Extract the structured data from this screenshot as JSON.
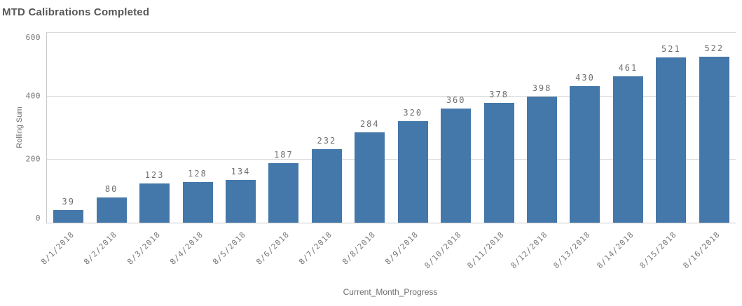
{
  "title": "MTD Calibrations Completed",
  "colors": {
    "bar": "#4477aa",
    "gridline": "#d9d9d9",
    "axis_line": "#c9c9c9",
    "tick_label": "#757575",
    "value_label": "#6e6e6e",
    "title_text": "#575757"
  },
  "chart_data": {
    "type": "bar",
    "title": "MTD Calibrations Completed",
    "xlabel": "Current_Month_Progress",
    "ylabel": "Rolling Sum",
    "categories": [
      "8/1/2018",
      "8/2/2018",
      "8/3/2018",
      "8/4/2018",
      "8/5/2018",
      "8/6/2018",
      "8/7/2018",
      "8/8/2018",
      "8/9/2018",
      "8/10/2018",
      "8/11/2018",
      "8/12/2018",
      "8/13/2018",
      "8/14/2018",
      "8/15/2018",
      "8/16/2018"
    ],
    "values": [
      39,
      80,
      123,
      128,
      134,
      187,
      232,
      284,
      320,
      360,
      378,
      398,
      430,
      461,
      521,
      522
    ],
    "ylim": [
      0,
      600
    ],
    "yticks": [
      0,
      200,
      400,
      600
    ],
    "grid": true,
    "legend": false,
    "value_labels_shown": true,
    "bar_color": "#4477aa"
  }
}
